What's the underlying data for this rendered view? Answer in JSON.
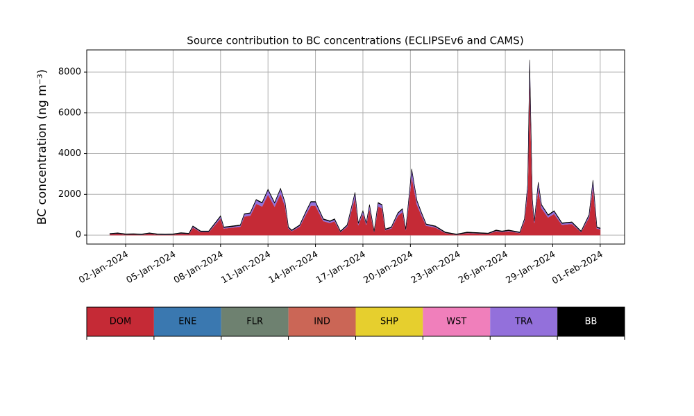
{
  "chart_data": {
    "type": "stacked_area",
    "title": "Source contribution to BC concentrations (ECLIPSEv6 and CAMS)",
    "y_label": "BC concentration (ng m⁻³)",
    "x": [
      "2024-01-01T00:00",
      "2024-01-01T12:00",
      "2024-01-02T00:00",
      "2024-01-02T12:00",
      "2024-01-03T00:00",
      "2024-01-03T12:00",
      "2024-01-04T00:00",
      "2024-01-04T12:00",
      "2024-01-05T00:00",
      "2024-01-05T12:00",
      "2024-01-06T00:00",
      "2024-01-06T06:00",
      "2024-01-06T18:00",
      "2024-01-07T06:00",
      "2024-01-07T18:00",
      "2024-01-08T00:00",
      "2024-01-08T05:00",
      "2024-01-08T18:00",
      "2024-01-09T06:00",
      "2024-01-09T12:00",
      "2024-01-09T21:00",
      "2024-01-10T06:00",
      "2024-01-10T15:00",
      "2024-01-11T00:00",
      "2024-01-11T10:00",
      "2024-01-11T19:00",
      "2024-01-12T02:00",
      "2024-01-12T07:00",
      "2024-01-12T12:00",
      "2024-01-13T00:00",
      "2024-01-13T10:00",
      "2024-01-13T17:00",
      "2024-01-14T00:00",
      "2024-01-14T12:00",
      "2024-01-14T22:00",
      "2024-01-15T05:00",
      "2024-01-15T14:00",
      "2024-01-16T00:00",
      "2024-01-16T12:00",
      "2024-01-16T17:00",
      "2024-01-17T00:00",
      "2024-01-17T05:00",
      "2024-01-17T10:00",
      "2024-01-17T17:00",
      "2024-01-17T23:00",
      "2024-01-18T05:00",
      "2024-01-18T10:00",
      "2024-01-18T19:00",
      "2024-01-19T05:00",
      "2024-01-19T12:00",
      "2024-01-19T17:00",
      "2024-01-20T02:00",
      "2024-01-20T10:00",
      "2024-01-20T17:00",
      "2024-01-21T00:00",
      "2024-01-21T14:00",
      "2024-01-22T05:00",
      "2024-01-22T22:00",
      "2024-01-23T14:00",
      "2024-01-24T22:00",
      "2024-01-25T10:00",
      "2024-01-25T19:00",
      "2024-01-26T05:00",
      "2024-01-26T22:00",
      "2024-01-27T05:00",
      "2024-01-27T10:00",
      "2024-01-27T13:00",
      "2024-01-27T17:00",
      "2024-01-27T20:00",
      "2024-01-28T02:00",
      "2024-01-28T07:00",
      "2024-01-28T17:00",
      "2024-01-29T02:00",
      "2024-01-29T14:00",
      "2024-01-30T05:00",
      "2024-01-30T19:00",
      "2024-01-31T07:00",
      "2024-01-31T13:00",
      "2024-01-31T19:00",
      "2024-02-01T00:00"
    ],
    "series": [
      {
        "name": "DOM",
        "color": "#c52a36",
        "label_color": "#000000",
        "values": [
          42,
          69,
          24,
          33,
          15,
          69,
          24,
          15,
          24,
          78,
          51,
          375,
          150,
          150,
          600,
          825,
          330,
          375,
          420,
          915,
          960,
          1545,
          1410,
          1995,
          1410,
          2040,
          1410,
          330,
          195,
          420,
          1050,
          1455,
          1455,
          690,
          600,
          690,
          150,
          420,
          1860,
          510,
          1050,
          510,
          1320,
          150,
          1410,
          1320,
          240,
          330,
          960,
          1140,
          240,
          2895,
          1500,
          960,
          465,
          375,
          105,
          15,
          105,
          60,
          195,
          150,
          195,
          105,
          690,
          2220,
          8100,
          1590,
          600,
          2310,
          1320,
          870,
          1050,
          510,
          555,
          150,
          870,
          2400,
          330,
          285
        ]
      },
      {
        "name": "ENE",
        "color": "#3a78b0",
        "label_color": "#000000",
        "values": [
          0,
          0,
          0,
          0,
          0,
          0,
          0,
          0,
          0,
          0,
          0,
          0,
          0,
          0,
          0,
          0,
          0,
          0,
          0,
          0,
          0,
          0,
          0,
          0,
          0,
          0,
          0,
          0,
          0,
          0,
          0,
          0,
          0,
          0,
          0,
          0,
          0,
          0,
          0,
          0,
          0,
          0,
          0,
          0,
          0,
          0,
          0,
          0,
          0,
          0,
          0,
          0,
          0,
          0,
          0,
          0,
          0,
          0,
          0,
          0,
          0,
          0,
          0,
          0,
          0,
          0,
          0,
          0,
          0,
          0,
          0,
          0,
          0,
          0,
          0,
          0,
          0,
          0,
          0,
          0
        ]
      },
      {
        "name": "FLR",
        "color": "#6e8170",
        "label_color": "#000000",
        "values": [
          0,
          0,
          0,
          0,
          0,
          0,
          0,
          0,
          0,
          0,
          0,
          0,
          0,
          0,
          0,
          0,
          0,
          0,
          0,
          0,
          0,
          0,
          0,
          0,
          0,
          0,
          0,
          0,
          0,
          0,
          0,
          0,
          0,
          0,
          0,
          0,
          0,
          0,
          0,
          0,
          0,
          0,
          0,
          0,
          0,
          0,
          0,
          0,
          0,
          0,
          0,
          0,
          0,
          0,
          0,
          0,
          0,
          0,
          0,
          0,
          0,
          0,
          0,
          0,
          0,
          0,
          0,
          0,
          0,
          0,
          0,
          0,
          0,
          0,
          0,
          0,
          0,
          0,
          0,
          0
        ]
      },
      {
        "name": "IND",
        "color": "#cb6656",
        "label_color": "#000000",
        "values": [
          0,
          0,
          0,
          0,
          0,
          0,
          0,
          0,
          0,
          0,
          0,
          0,
          0,
          0,
          0,
          0,
          0,
          0,
          0,
          0,
          0,
          0,
          0,
          0,
          0,
          0,
          0,
          0,
          0,
          0,
          0,
          0,
          0,
          0,
          0,
          0,
          0,
          0,
          0,
          0,
          0,
          0,
          0,
          0,
          0,
          0,
          0,
          0,
          0,
          0,
          0,
          0,
          0,
          0,
          0,
          0,
          0,
          0,
          0,
          0,
          0,
          0,
          0,
          0,
          0,
          0,
          0,
          0,
          0,
          0,
          0,
          0,
          0,
          0,
          0,
          0,
          0,
          0,
          0,
          0
        ]
      },
      {
        "name": "SHP",
        "color": "#e6cf2e",
        "label_color": "#000000",
        "values": [
          0,
          0,
          0,
          0,
          0,
          0,
          0,
          0,
          0,
          0,
          0,
          0,
          0,
          0,
          0,
          0,
          0,
          0,
          0,
          0,
          0,
          0,
          0,
          0,
          0,
          0,
          0,
          0,
          0,
          0,
          0,
          0,
          0,
          0,
          0,
          0,
          0,
          0,
          0,
          0,
          0,
          0,
          0,
          0,
          0,
          0,
          0,
          0,
          0,
          0,
          0,
          0,
          0,
          0,
          0,
          0,
          0,
          0,
          0,
          0,
          0,
          0,
          0,
          0,
          0,
          0,
          0,
          0,
          0,
          0,
          0,
          0,
          0,
          0,
          0,
          0,
          0,
          0,
          0,
          0
        ]
      },
      {
        "name": "WST",
        "color": "#f07fbb",
        "label_color": "#000000",
        "values": [
          0,
          0,
          0,
          0,
          0,
          0,
          0,
          0,
          0,
          0,
          0,
          0,
          0,
          0,
          0,
          0,
          0,
          0,
          0,
          0,
          0,
          0,
          0,
          0,
          0,
          0,
          0,
          0,
          0,
          0,
          0,
          0,
          0,
          0,
          0,
          0,
          0,
          0,
          0,
          0,
          0,
          0,
          0,
          0,
          0,
          0,
          0,
          0,
          0,
          0,
          0,
          0,
          0,
          0,
          0,
          0,
          0,
          0,
          0,
          0,
          0,
          0,
          0,
          0,
          0,
          0,
          0,
          0,
          0,
          0,
          0,
          0,
          0,
          0,
          0,
          0,
          0,
          0,
          0,
          0
        ]
      },
      {
        "name": "TRA",
        "color": "#9370db",
        "label_color": "#000000",
        "values": [
          8,
          11,
          6,
          7,
          5,
          11,
          6,
          5,
          6,
          12,
          9,
          45,
          20,
          20,
          70,
          95,
          40,
          45,
          50,
          105,
          110,
          175,
          160,
          225,
          160,
          230,
          160,
          40,
          25,
          50,
          120,
          165,
          165,
          80,
          70,
          80,
          20,
          50,
          210,
          60,
          120,
          60,
          150,
          20,
          160,
          150,
          30,
          40,
          110,
          130,
          30,
          325,
          170,
          110,
          55,
          45,
          15,
          5,
          15,
          10,
          25,
          20,
          25,
          15,
          80,
          250,
          400,
          180,
          70,
          260,
          150,
          100,
          120,
          60,
          65,
          20,
          100,
          270,
          40,
          35
        ]
      },
      {
        "name": "BB",
        "color": "#000000",
        "label_color": "#ffffff",
        "values": [
          30,
          30,
          30,
          30,
          30,
          30,
          30,
          30,
          30,
          30,
          30,
          30,
          30,
          30,
          30,
          30,
          30,
          30,
          30,
          30,
          30,
          30,
          30,
          30,
          30,
          30,
          30,
          30,
          30,
          30,
          30,
          30,
          30,
          30,
          30,
          30,
          30,
          30,
          30,
          30,
          30,
          30,
          30,
          30,
          30,
          30,
          30,
          30,
          30,
          30,
          30,
          30,
          30,
          30,
          30,
          30,
          30,
          30,
          30,
          30,
          30,
          30,
          30,
          30,
          30,
          30,
          100,
          30,
          30,
          30,
          30,
          30,
          30,
          30,
          30,
          30,
          30,
          30,
          30,
          30
        ]
      }
    ],
    "xlim": [
      "2023-12-30T13:00",
      "2024-02-02T13:00"
    ],
    "xticks": [
      {
        "value": "2024-01-02T00:00",
        "label": "02-Jan-2024"
      },
      {
        "value": "2024-01-05T00:00",
        "label": "05-Jan-2024"
      },
      {
        "value": "2024-01-08T00:00",
        "label": "08-Jan-2024"
      },
      {
        "value": "2024-01-11T00:00",
        "label": "11-Jan-2024"
      },
      {
        "value": "2024-01-14T00:00",
        "label": "14-Jan-2024"
      },
      {
        "value": "2024-01-17T00:00",
        "label": "17-Jan-2024"
      },
      {
        "value": "2024-01-20T00:00",
        "label": "20-Jan-2024"
      },
      {
        "value": "2024-01-23T00:00",
        "label": "23-Jan-2024"
      },
      {
        "value": "2024-01-26T00:00",
        "label": "26-Jan-2024"
      },
      {
        "value": "2024-01-29T00:00",
        "label": "29-Jan-2024"
      },
      {
        "value": "2024-02-01T00:00",
        "label": "01-Feb-2024"
      }
    ],
    "ylim": [
      -440,
      9090
    ],
    "yticks": [
      0,
      2000,
      4000,
      6000,
      8000
    ],
    "grid": true
  }
}
